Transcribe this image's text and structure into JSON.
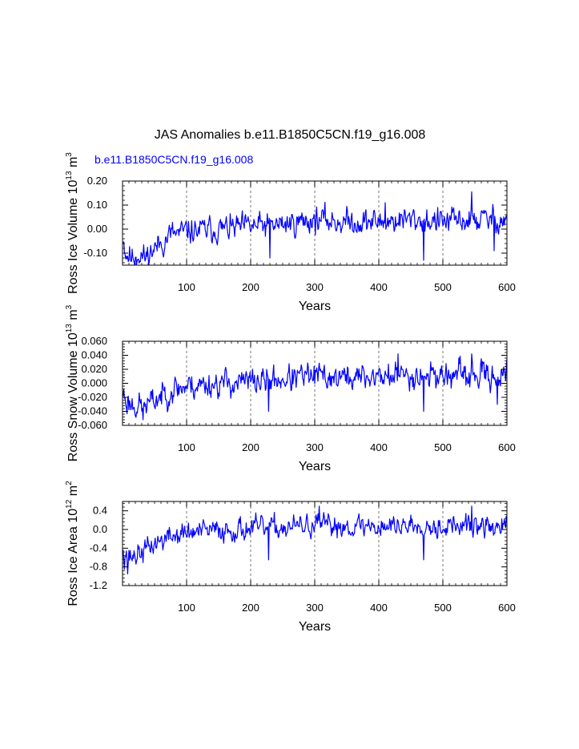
{
  "main_title": "JAS Anomalies b.e11.B1850C5CN.f19_g16.008",
  "case_label": "b.e11.B1850C5CN.f19_g16.008",
  "chart_data": [
    {
      "type": "line",
      "id": "ice-volume",
      "ylabel": {
        "main": "Ross Ice Volume 10",
        "exp1": "13",
        "mid": " m",
        "exp2": "3"
      },
      "xlabel": "Years",
      "xlim": [
        0,
        600
      ],
      "ylim": [
        -0.15,
        0.2
      ],
      "xticks": [
        100,
        200,
        300,
        400,
        500,
        600
      ],
      "xtick_labels": [
        "100",
        "200",
        "300",
        "400",
        "500",
        "600"
      ],
      "yticks": [
        -0.1,
        0.0,
        0.1,
        0.2
      ],
      "ytick_labels": [
        "-0.10",
        "0.00",
        "0.10",
        "0.20"
      ],
      "vgrid": [
        100,
        200,
        300,
        400,
        500
      ],
      "line_color": "#0000ff",
      "series": [
        {
          "name": "b.e11.B1850C5CN.f19_g16.008",
          "x_start": 1,
          "x_step": 1,
          "keypoints": [
            [
              0,
              -0.01
            ],
            [
              5,
              -0.1
            ],
            [
              15,
              -0.12
            ],
            [
              25,
              -0.1
            ],
            [
              35,
              -0.12
            ],
            [
              50,
              -0.08
            ],
            [
              65,
              -0.05
            ],
            [
              75,
              -0.02
            ],
            [
              90,
              -0.02
            ],
            [
              100,
              -0.01
            ],
            [
              150,
              0.0
            ],
            [
              200,
              0.01
            ],
            [
              250,
              0.02
            ],
            [
              300,
              0.04
            ],
            [
              350,
              0.03
            ],
            [
              400,
              0.03
            ],
            [
              450,
              0.04
            ],
            [
              500,
              0.03
            ],
            [
              550,
              0.04
            ],
            [
              600,
              0.04
            ]
          ],
          "noise_amp": 0.045,
          "seed": 11,
          "spikes": [
            [
              545,
              0.155
            ],
            [
              470,
              -0.13
            ],
            [
              230,
              -0.12
            ],
            [
              28,
              -0.135
            ],
            [
              410,
              0.11
            ],
            [
              580,
              -0.09
            ]
          ]
        }
      ]
    },
    {
      "type": "line",
      "id": "snow-volume",
      "ylabel": {
        "main": "Ross Snow Volume 10",
        "exp1": "13",
        "mid": " m",
        "exp2": "3"
      },
      "xlabel": "Years",
      "xlim": [
        0,
        600
      ],
      "ylim": [
        -0.06,
        0.06
      ],
      "xticks": [
        100,
        200,
        300,
        400,
        500,
        600
      ],
      "xtick_labels": [
        "100",
        "200",
        "300",
        "400",
        "500",
        "600"
      ],
      "yticks": [
        -0.06,
        -0.04,
        -0.02,
        0.0,
        0.02,
        0.04,
        0.06
      ],
      "ytick_labels": [
        "-0.060",
        "-0.040",
        "-0.020",
        "0.000",
        "0.020",
        "0.040",
        "0.060"
      ],
      "vgrid": [
        100,
        200,
        300,
        400,
        500
      ],
      "line_color": "#0000ff",
      "series": [
        {
          "name": "b.e11.B1850C5CN.f19_g16.008",
          "x_start": 1,
          "x_step": 1,
          "keypoints": [
            [
              0,
              -0.01
            ],
            [
              5,
              -0.025
            ],
            [
              15,
              -0.03
            ],
            [
              30,
              -0.032
            ],
            [
              45,
              -0.028
            ],
            [
              60,
              -0.018
            ],
            [
              80,
              -0.008
            ],
            [
              100,
              -0.004
            ],
            [
              150,
              0.0
            ],
            [
              200,
              0.002
            ],
            [
              250,
              0.006
            ],
            [
              300,
              0.01
            ],
            [
              350,
              0.008
            ],
            [
              400,
              0.01
            ],
            [
              450,
              0.012
            ],
            [
              500,
              0.012
            ],
            [
              550,
              0.01
            ],
            [
              600,
              0.012
            ]
          ],
          "noise_amp": 0.016,
          "seed": 23,
          "spikes": [
            [
              32,
              -0.052
            ],
            [
              430,
              0.042
            ],
            [
              545,
              0.042
            ],
            [
              228,
              -0.04
            ],
            [
              470,
              -0.04
            ],
            [
              585,
              -0.03
            ],
            [
              600,
              0.035
            ]
          ]
        }
      ]
    },
    {
      "type": "line",
      "id": "ice-area",
      "ylabel": {
        "main": "Ross Ice Area 10",
        "exp1": "12",
        "mid": " m",
        "exp2": "2"
      },
      "xlabel": "Years",
      "xlim": [
        0,
        600
      ],
      "ylim": [
        -1.2,
        0.6
      ],
      "xticks": [
        100,
        200,
        300,
        400,
        500,
        600
      ],
      "xtick_labels": [
        "100",
        "200",
        "300",
        "400",
        "500",
        "600"
      ],
      "yticks": [
        -1.2,
        -0.8,
        -0.4,
        0.0,
        0.4
      ],
      "ytick_labels": [
        "-1.2",
        "-0.8",
        "-0.4",
        "0.0",
        "0.4"
      ],
      "vgrid": [
        100,
        200,
        300,
        400,
        500
      ],
      "line_color": "#0000ff",
      "series": [
        {
          "name": "b.e11.B1850C5CN.f19_g16.008",
          "x_start": 1,
          "x_step": 1,
          "keypoints": [
            [
              0,
              -0.3
            ],
            [
              8,
              -0.6
            ],
            [
              20,
              -0.55
            ],
            [
              35,
              -0.45
            ],
            [
              50,
              -0.3
            ],
            [
              70,
              -0.18
            ],
            [
              90,
              -0.1
            ],
            [
              120,
              -0.05
            ],
            [
              150,
              -0.02
            ],
            [
              200,
              0.02
            ],
            [
              250,
              0.04
            ],
            [
              300,
              0.08
            ],
            [
              350,
              0.08
            ],
            [
              400,
              0.07
            ],
            [
              450,
              0.1
            ],
            [
              500,
              0.08
            ],
            [
              550,
              0.06
            ],
            [
              600,
              0.05
            ]
          ],
          "noise_amp": 0.2,
          "seed": 37,
          "spikes": [
            [
              8,
              -0.95
            ],
            [
              307,
              0.5
            ],
            [
              545,
              0.5
            ],
            [
              470,
              -0.65
            ],
            [
              228,
              -0.65
            ],
            [
              3,
              -0.85
            ]
          ]
        }
      ]
    }
  ]
}
